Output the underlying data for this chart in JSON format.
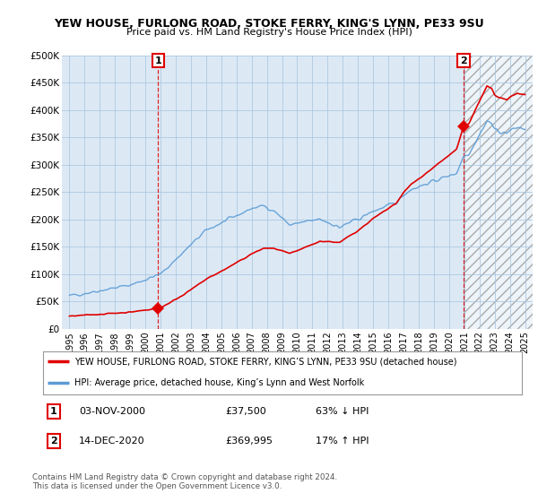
{
  "title": "YEW HOUSE, FURLONG ROAD, STOKE FERRY, KING'S LYNN, PE33 9SU",
  "subtitle": "Price paid vs. HM Land Registry's House Price Index (HPI)",
  "ylabel_ticks": [
    "£0",
    "£50K",
    "£100K",
    "£150K",
    "£200K",
    "£250K",
    "£300K",
    "£350K",
    "£400K",
    "£450K",
    "£500K"
  ],
  "ytick_values": [
    0,
    50000,
    100000,
    150000,
    200000,
    250000,
    300000,
    350000,
    400000,
    450000,
    500000
  ],
  "xlim": [
    1994.5,
    2025.5
  ],
  "ylim": [
    0,
    500000
  ],
  "hpi_color": "#5b9bd5",
  "price_color": "#e00000",
  "sale1_year": 2000.84,
  "sale1_price": 37500,
  "sale2_year": 2020.96,
  "sale2_price": 369995,
  "legend_line1": "YEW HOUSE, FURLONG ROAD, STOKE FERRY, KING’S LYNN, PE33 9SU (detached house)",
  "legend_line2": "HPI: Average price, detached house, King’s Lynn and West Norfolk",
  "table_row1": [
    "1",
    "03-NOV-2000",
    "£37,500",
    "63% ↓ HPI"
  ],
  "table_row2": [
    "2",
    "14-DEC-2020",
    "£369,995",
    "17% ↑ HPI"
  ],
  "footnote": "Contains HM Land Registry data © Crown copyright and database right 2024.\nThis data is licensed under the Open Government Licence v3.0.",
  "background_color": "#ffffff",
  "plot_bg_color": "#dce9f5",
  "grid_color": "#aec8e0",
  "x_ticks": [
    1995,
    1996,
    1997,
    1998,
    1999,
    2000,
    2001,
    2002,
    2003,
    2004,
    2005,
    2006,
    2007,
    2008,
    2009,
    2010,
    2011,
    2012,
    2013,
    2014,
    2015,
    2016,
    2017,
    2018,
    2019,
    2020,
    2021,
    2022,
    2023,
    2024,
    2025
  ]
}
